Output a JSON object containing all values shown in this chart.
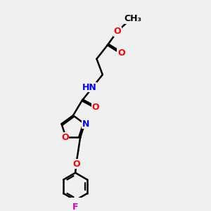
{
  "bg_color": "#f0f0f0",
  "bond_color": "#000000",
  "bond_width": 1.8,
  "atom_colors": {
    "O": "#ff0000",
    "N": "#0000ff",
    "F": "#cc00cc",
    "H": "#008080",
    "C": "#000000"
  },
  "font_size": 9,
  "fig_size": [
    3.0,
    3.0
  ],
  "dpi": 100
}
